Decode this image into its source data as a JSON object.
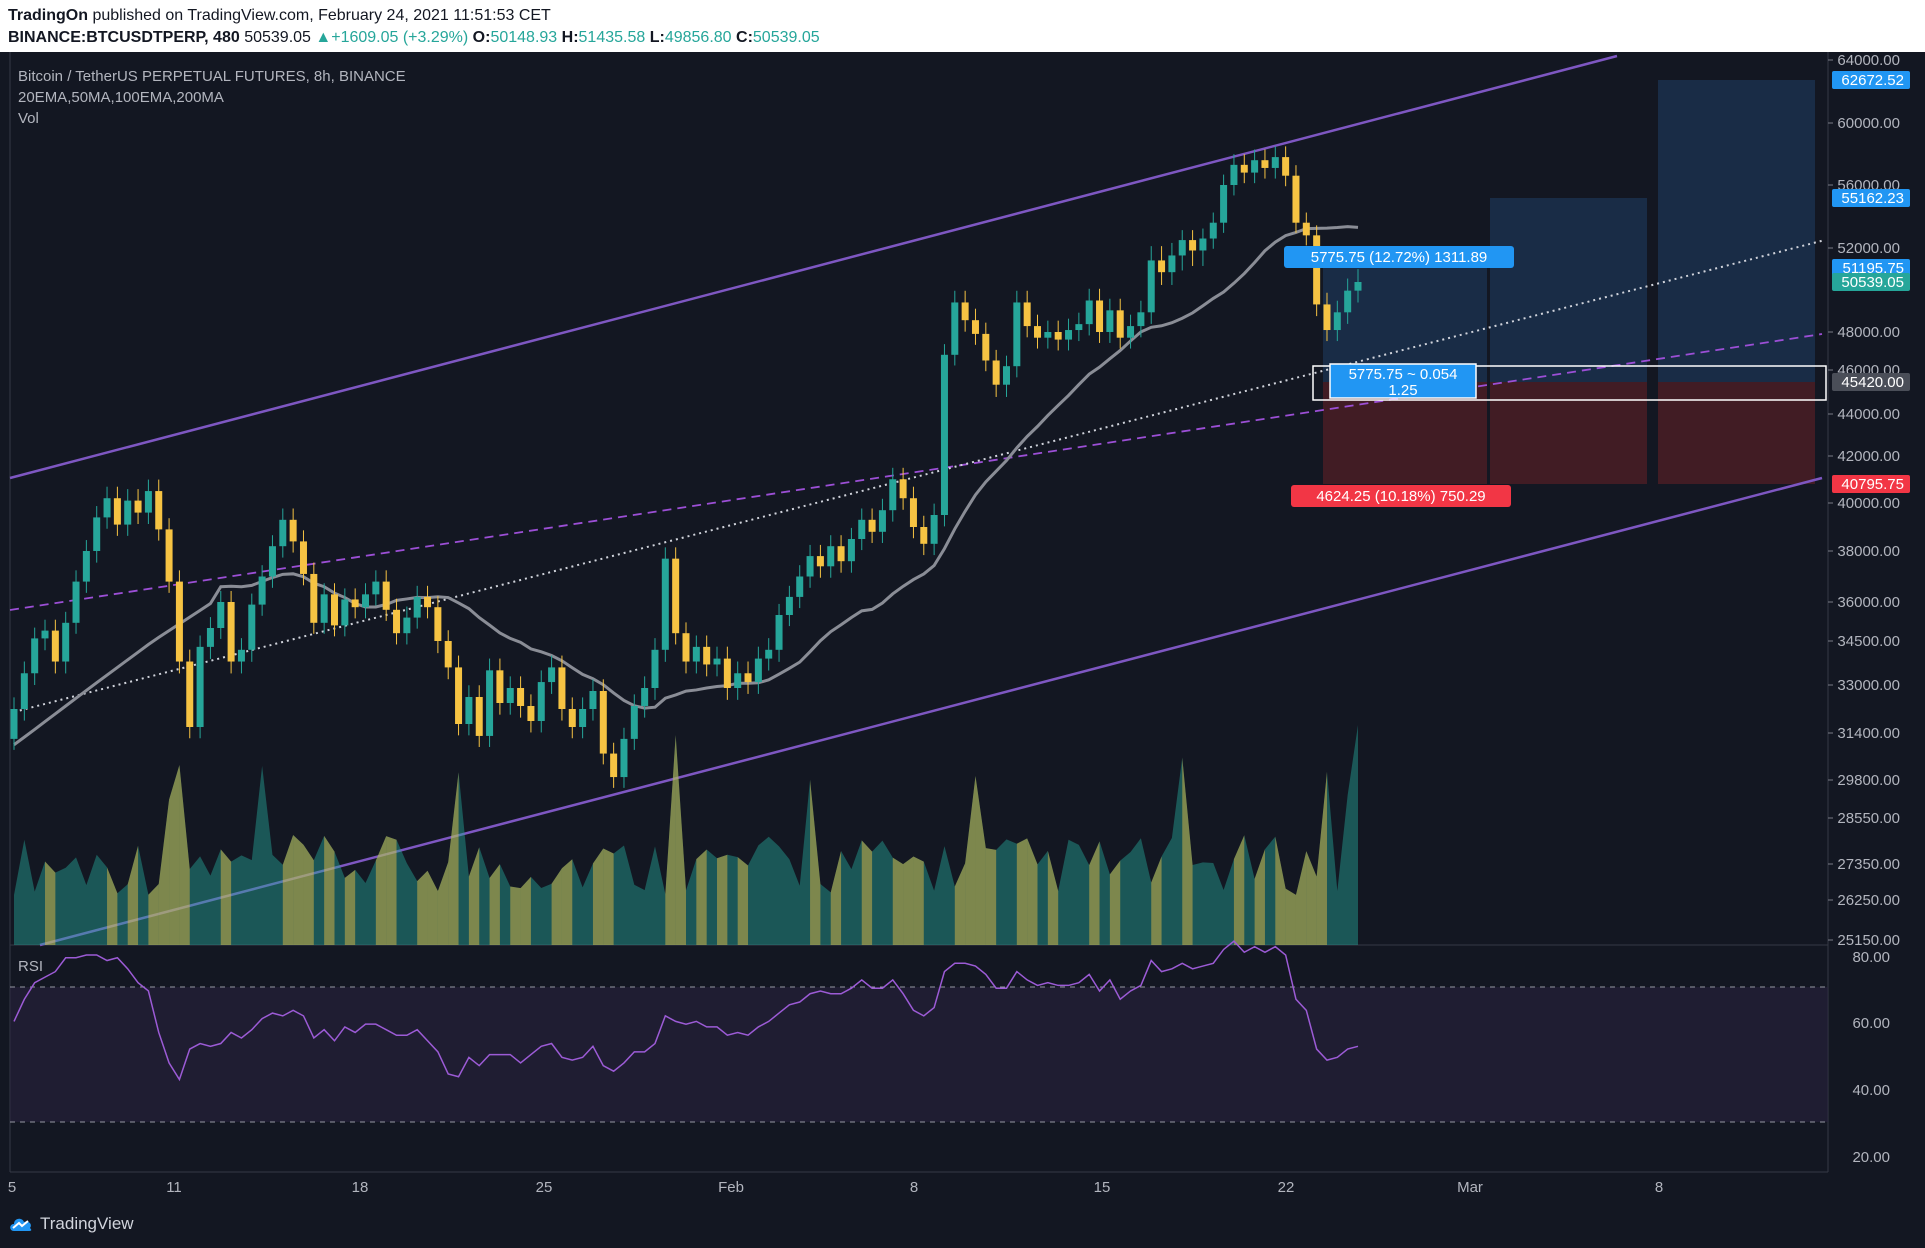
{
  "header": {
    "publisher": "TradingOn",
    "published_text": "published on TradingView.com, February 24, 2021 11:51:53 CET",
    "symbol": "BINANCE:BTCUSDTPERP, 480",
    "price": "50539.05",
    "change": "▲+1609.05 (+3.29%)",
    "o_label": "O:",
    "o": "50148.93",
    "h_label": "H:",
    "h": "51435.58",
    "l_label": "L:",
    "l": "49856.80",
    "c_label": "C:",
    "c": "50539.05"
  },
  "legend": {
    "title": "Bitcoin / TetherUS PERPETUAL FUTURES, 8h, BINANCE",
    "indicators": "20EMA,50MA,100EMA,200MA",
    "volume": "Vol"
  },
  "rsi": {
    "label": "RSI"
  },
  "footer": {
    "brand": "TradingView"
  },
  "colors": {
    "background": "#131722",
    "up": "#26a69a",
    "down": "#f6c343",
    "channel": "#7e57c2",
    "ma": "#8a8d96",
    "rsi": "#9c5bd6"
  },
  "chart_data": {
    "type": "candlestick",
    "title": "Bitcoin / TetherUS PERPETUAL FUTURES, 8h, BINANCE",
    "price_ticks": [
      "64000.00",
      "60000.00",
      "56000.00",
      "52000.00",
      "48000.00",
      "46000.00",
      "44000.00",
      "42000.00",
      "40000.00",
      "38000.00",
      "36000.00",
      "34500.00",
      "33000.00",
      "31400.00",
      "29800.00",
      "28550.00",
      "27350.00",
      "26250.00",
      "25150.00"
    ],
    "x_ticks": [
      "5",
      "11",
      "18",
      "25",
      "Feb",
      "8",
      "15",
      "22",
      "Mar",
      "8"
    ],
    "rsi_ticks": [
      "80.00",
      "60.00",
      "40.00",
      "20.00"
    ],
    "price_labels": [
      {
        "value": "62672.52",
        "color": "#2196f3"
      },
      {
        "value": "55162.23",
        "color": "#2196f3"
      },
      {
        "value": "51195.75",
        "color": "#2196f3"
      },
      {
        "value": "50539.05",
        "color": "#26a69a"
      },
      {
        "value": "45420.00",
        "color": "#4a4e58"
      },
      {
        "value": "40795.75",
        "color": "#f23645"
      }
    ],
    "target_label": "5775.75 (12.72%) 1311.89",
    "stop_label": "4624.25 (10.18%) 750.29",
    "risk_box_line1": "5775.75 ~ 0.054",
    "risk_box_line2": "1.25",
    "entry": 45420.0,
    "stop": 40795.75,
    "targets": [
      51195.75,
      55162.23,
      62672.52
    ],
    "closes": [
      32200,
      33400,
      34600,
      34900,
      33800,
      35200,
      36800,
      38000,
      39400,
      40200,
      39100,
      40100,
      39600,
      40500,
      38900,
      36800,
      33800,
      31600,
      34300,
      35000,
      36000,
      33800,
      34200,
      35900,
      37000,
      38200,
      39300,
      38400,
      37100,
      35200,
      36300,
      35100,
      36100,
      35800,
      36300,
      36800,
      35700,
      34800,
      35400,
      36200,
      35800,
      34500,
      33600,
      31700,
      32600,
      31300,
      33500,
      32400,
      32900,
      32300,
      31800,
      33100,
      33600,
      32200,
      31600,
      32200,
      32800,
      30700,
      29900,
      31200,
      32300,
      32900,
      34200,
      37700,
      34800,
      33800,
      34300,
      33700,
      33900,
      32900,
      33400,
      33100,
      33900,
      34200,
      35500,
      36200,
      37000,
      37800,
      37400,
      38200,
      37600,
      38500,
      39300,
      38800,
      39700,
      41000,
      40200,
      39000,
      38300,
      39500,
      46800,
      49500,
      48600,
      47900,
      46500,
      45300,
      46200,
      49500,
      48300,
      47700,
      48000,
      47600,
      48100,
      48400,
      49600,
      48000,
      49100,
      47700,
      48300,
      49000,
      51500,
      51000,
      51700,
      52500,
      51900,
      52600,
      53600,
      56000,
      57300,
      56800,
      57600,
      57100,
      57800,
      56600,
      53600,
      52800,
      49400,
      48100,
      49000,
      50100,
      50539
    ],
    "rsi": [
      56,
      64,
      70,
      72,
      74,
      79,
      79,
      80,
      80,
      78,
      79,
      75,
      70,
      67,
      52,
      41,
      35,
      46,
      48,
      47,
      48,
      52,
      50,
      53,
      57,
      59,
      58,
      60,
      58,
      50,
      53,
      49,
      54,
      52,
      55,
      55,
      53,
      51,
      51,
      53,
      49,
      45,
      37,
      36,
      43,
      40,
      44,
      44,
      44,
      41,
      44,
      47,
      48,
      43,
      42,
      43,
      47,
      40,
      38,
      41,
      45,
      45,
      48,
      58,
      56,
      55,
      56,
      54,
      54,
      51,
      52,
      51,
      54,
      56,
      59,
      62,
      63,
      66,
      67,
      66,
      66,
      68,
      71,
      68,
      68,
      71,
      66,
      60,
      58,
      61,
      74,
      77,
      77,
      76,
      73,
      68,
      68,
      74,
      71,
      69,
      70,
      69,
      69,
      70,
      73,
      67,
      71,
      64,
      67,
      69,
      78,
      74,
      75,
      77,
      75,
      76,
      77,
      82,
      85,
      81,
      83,
      81,
      83,
      80,
      64,
      60,
      46,
      42,
      43,
      46,
      47
    ]
  }
}
